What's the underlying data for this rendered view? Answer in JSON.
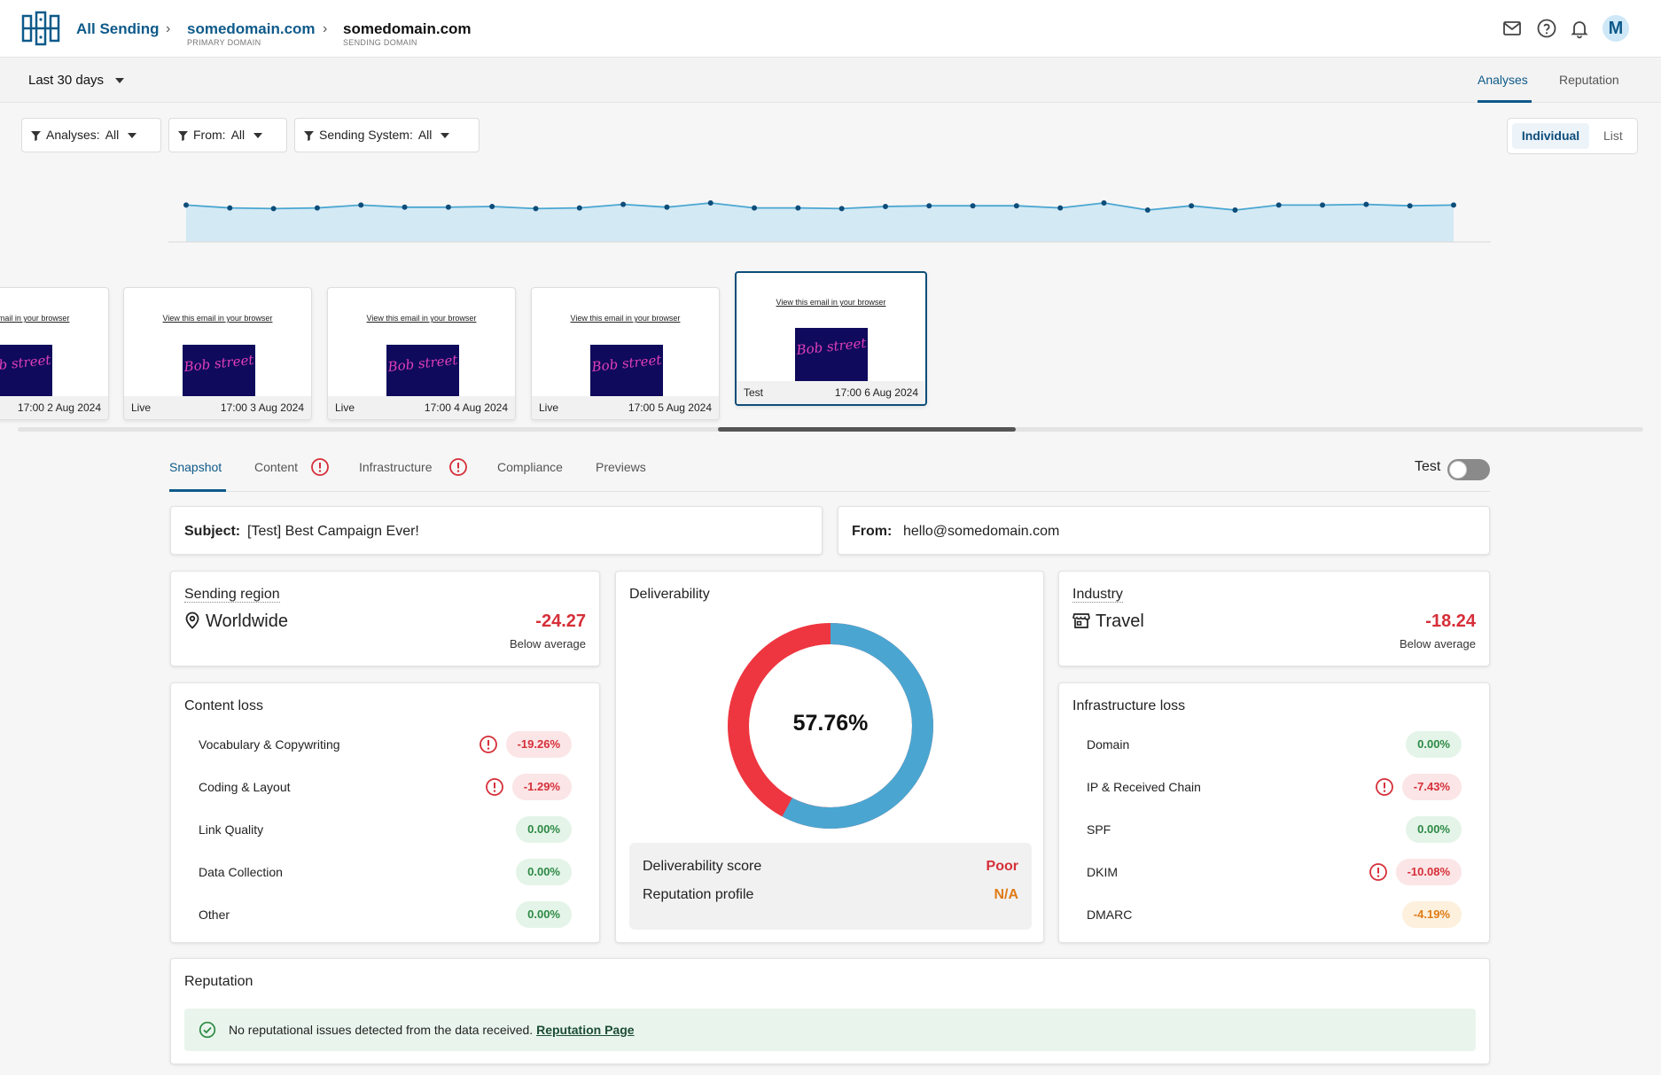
{
  "header": {
    "root": "All Sending",
    "crumbs": [
      {
        "name": "somedomain.com",
        "sub": "PRIMARY DOMAIN"
      },
      {
        "name": "somedomain.com",
        "sub": "SENDING DOMAIN"
      }
    ],
    "avatar": "M",
    "icons": [
      "mail-icon",
      "help-icon",
      "bell-icon"
    ]
  },
  "datebar": {
    "range": "Last 30 days",
    "tabs": [
      "Analyses",
      "Reputation"
    ],
    "active_tab": "Analyses"
  },
  "filters": [
    {
      "label": "Analyses:",
      "value": "All"
    },
    {
      "label": "From:",
      "value": "All"
    },
    {
      "label": "Sending System:",
      "value": "All"
    }
  ],
  "view_toggle": {
    "options": [
      "Individual",
      "List"
    ],
    "selected": "Individual"
  },
  "timeline": {
    "series_color": "#4aa6d1",
    "fill_color": "#d3e9f4",
    "values": [
      0.52,
      0.48,
      0.47,
      0.48,
      0.52,
      0.49,
      0.49,
      0.5,
      0.47,
      0.48,
      0.53,
      0.49,
      0.55,
      0.48,
      0.48,
      0.47,
      0.5,
      0.51,
      0.51,
      0.51,
      0.48,
      0.55,
      0.45,
      0.51,
      0.45,
      0.52,
      0.52,
      0.53,
      0.51,
      0.52
    ]
  },
  "thumbnails": [
    {
      "link": "View this email in your browser",
      "logo": "Bob street",
      "type": "",
      "time": "17:00 2 Aug 2024"
    },
    {
      "link": "View this email in your browser",
      "logo": "Bob street",
      "type": "Live",
      "time": "17:00 3 Aug 2024"
    },
    {
      "link": "View this email in your browser",
      "logo": "Bob street",
      "type": "Live",
      "time": "17:00 4 Aug 2024"
    },
    {
      "link": "View this email in your browser",
      "logo": "Bob street",
      "type": "Live",
      "time": "17:00 5 Aug 2024"
    },
    {
      "link": "View this email in your browser",
      "logo": "Bob street",
      "type": "Test",
      "time": "17:00 6 Aug 2024"
    }
  ],
  "content_tabs": {
    "items": [
      "Snapshot",
      "Content",
      "Infrastructure",
      "Compliance",
      "Previews"
    ],
    "active": "Snapshot",
    "alerts": [
      "Content",
      "Infrastructure"
    ],
    "test_label": "Test",
    "test_on": false
  },
  "subject": {
    "label": "Subject:",
    "value": "[Test] Best Campaign Ever!"
  },
  "from": {
    "label": "From:",
    "value": "hello@somedomain.com"
  },
  "region": {
    "title": "Sending region",
    "value": "Worldwide",
    "score": "-24.27",
    "note": "Below average"
  },
  "industry": {
    "title": "Industry",
    "value": "Travel",
    "score": "-18.24",
    "note": "Below average"
  },
  "deliverability": {
    "title": "Deliverability",
    "percent": 57.76,
    "percent_label": "57.76%",
    "good_color": "#4aa6d1",
    "bad_color": "#ee3640",
    "score_label": "Deliverability score",
    "score_value": "Poor",
    "score_color": "#d62f39",
    "profile_label": "Reputation profile",
    "profile_value": "N/A",
    "profile_color": "#e07b14"
  },
  "content_loss": {
    "title": "Content loss",
    "rows": [
      {
        "name": "Vocabulary & Copywriting",
        "value": "-19.26%",
        "status": "red",
        "warn": true
      },
      {
        "name": "Coding & Layout",
        "value": "-1.29%",
        "status": "red",
        "warn": true
      },
      {
        "name": "Link Quality",
        "value": "0.00%",
        "status": "green",
        "warn": false
      },
      {
        "name": "Data Collection",
        "value": "0.00%",
        "status": "green",
        "warn": false
      },
      {
        "name": "Other",
        "value": "0.00%",
        "status": "green",
        "warn": false
      }
    ]
  },
  "infrastructure_loss": {
    "title": "Infrastructure loss",
    "rows": [
      {
        "name": "Domain",
        "value": "0.00%",
        "status": "green",
        "warn": false
      },
      {
        "name": "IP & Received Chain",
        "value": "-7.43%",
        "status": "red",
        "warn": true
      },
      {
        "name": "SPF",
        "value": "0.00%",
        "status": "green",
        "warn": false
      },
      {
        "name": "DKIM",
        "value": "-10.08%",
        "status": "red",
        "warn": true
      },
      {
        "name": "DMARC",
        "value": "-4.19%",
        "status": "orange",
        "warn": false
      }
    ]
  },
  "reputation": {
    "title": "Reputation",
    "message": "No reputational issues detected from the data received.",
    "link": "Reputation Page"
  }
}
